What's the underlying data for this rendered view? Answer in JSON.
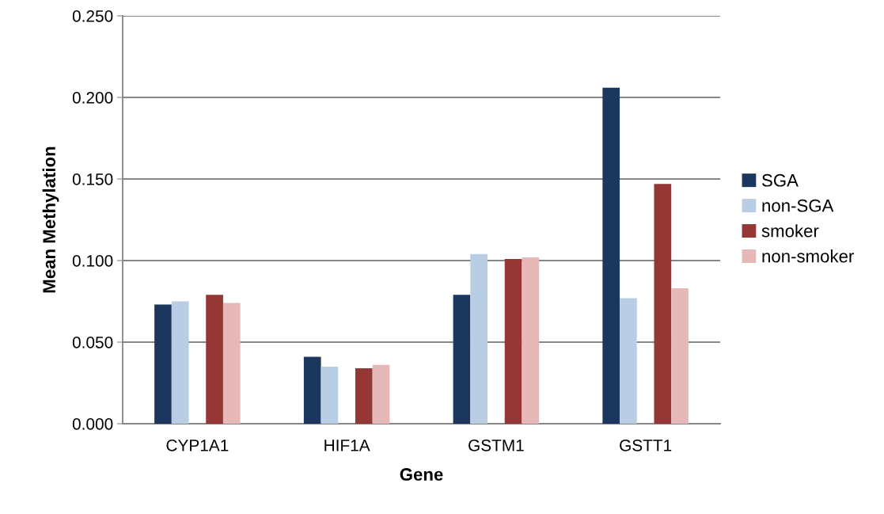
{
  "chart_data": {
    "type": "bar",
    "xlabel": "Gene",
    "ylabel": "Mean Methylation",
    "categories": [
      "CYP1A1",
      "HIF1A",
      "GSTM1",
      "GSTT1"
    ],
    "series": [
      {
        "name": "SGA",
        "color": "#1b375e",
        "values": [
          0.073,
          0.041,
          0.079,
          0.206
        ]
      },
      {
        "name": "non-SGA",
        "color": "#b9cde5",
        "values": [
          0.075,
          0.035,
          0.104,
          0.077
        ]
      },
      {
        "name": "smoker",
        "color": "#953735",
        "values": [
          0.079,
          0.034,
          0.101,
          0.147
        ]
      },
      {
        "name": "non-smoker",
        "color": "#e6b9b8",
        "values": [
          0.074,
          0.036,
          0.102,
          0.083
        ]
      }
    ],
    "ylim": [
      0,
      0.25
    ],
    "yticks": [
      {
        "value": 0,
        "label": "0.000"
      },
      {
        "value": 0.05,
        "label": "0.050"
      },
      {
        "value": 0.1,
        "label": "0.100"
      },
      {
        "value": 0.15,
        "label": "0.150"
      },
      {
        "value": 0.2,
        "label": "0.200"
      },
      {
        "value": 0.25,
        "label": "0.250"
      }
    ],
    "grid": "y",
    "legend": "right"
  }
}
